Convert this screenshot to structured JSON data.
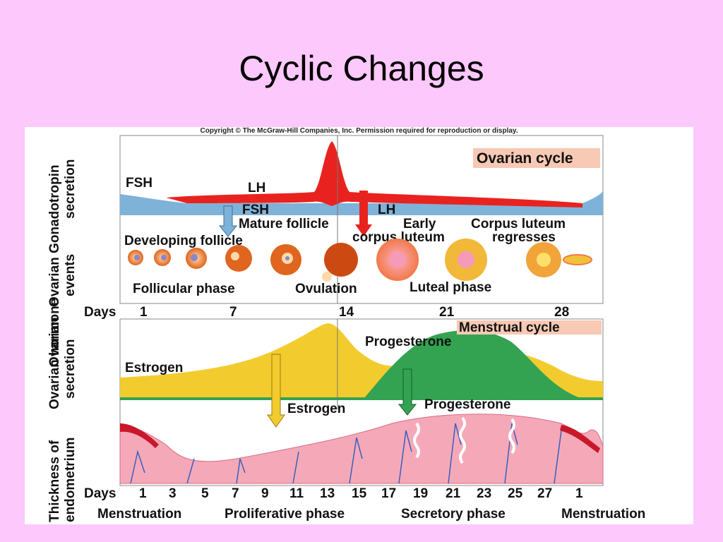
{
  "slide": {
    "title": "Cyclic Changes"
  },
  "figure": {
    "copyright": "Copyright © The McGraw-Hill Companies, Inc. Permission required for reproduction or display.",
    "side_labels": {
      "gonadotropin": [
        "Ovarian Gonadotropin",
        "secretion"
      ],
      "ovarian_events": [
        "Ovarian",
        "events"
      ],
      "hormone": [
        "Ovarian hormone",
        "secretion"
      ],
      "endometrium": [
        "Thickness of",
        "endometrium"
      ]
    },
    "ovarian_cycle": {
      "badge": "Ovarian cycle",
      "fsh": "FSH",
      "lh": "LH",
      "fsh_arrow": "FSH",
      "lh_arrow": "LH",
      "developing_follicle": "Developing follicle",
      "mature_follicle": "Mature follicle",
      "early_cl_1": "Early",
      "early_cl_2": "corpus luteum",
      "cl_regresses_1": "Corpus luteum",
      "cl_regresses_2": "regresses",
      "follicular_phase": "Follicular phase",
      "ovulation": "Ovulation",
      "luteal_phase": "Luteal phase"
    },
    "days_top": {
      "label": "Days",
      "ticks": [
        "1",
        "7",
        "14",
        "21",
        "28"
      ]
    },
    "menstrual_cycle": {
      "badge": "Menstrual cycle",
      "estrogen": "Estrogen",
      "progesterone": "Progesterone",
      "estrogen_arrow": "Estrogen",
      "progesterone_arrow": "Progesterone"
    },
    "days_bottom": {
      "label": "Days",
      "ticks": [
        "1",
        "3",
        "5",
        "7",
        "9",
        "11",
        "13",
        "15",
        "17",
        "19",
        "21",
        "23",
        "25",
        "27",
        "1"
      ]
    },
    "phases": [
      "Menstruation",
      "Proliferative phase",
      "Secretory phase",
      "Menstruation"
    ]
  },
  "colors": {
    "background": "#fdc8fb",
    "lh": "#e8231f",
    "fsh": "#7fb2d8",
    "estrogen": "#f2cc2e",
    "progesterone": "#33a352",
    "endometrium": "#f5a9b8",
    "badge": "#f8c9b4"
  }
}
